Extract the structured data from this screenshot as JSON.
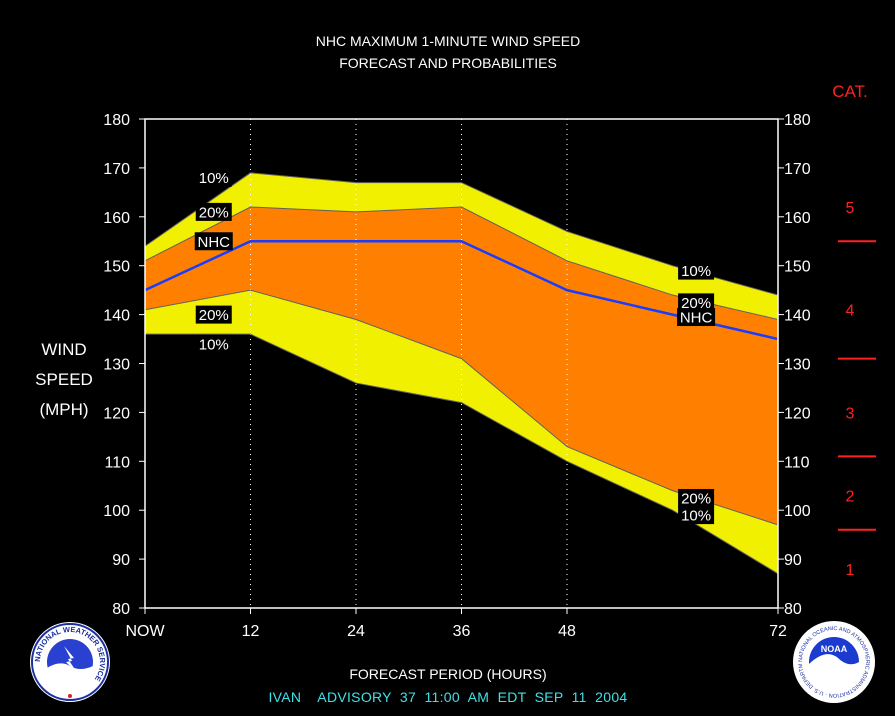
{
  "chart_data": {
    "type": "area",
    "title": "NHC MAXIMUM 1-MINUTE WIND SPEED",
    "subtitle": "FORECAST AND PROBABILITIES",
    "xlabel": "FORECAST PERIOD (HOURS)",
    "ylabel": [
      "WIND",
      "SPEED",
      "(MPH)"
    ],
    "xlim": [
      0,
      72
    ],
    "ylim": [
      80,
      180
    ],
    "x_ticks": [
      {
        "value": 0,
        "label": "NOW"
      },
      {
        "value": 12,
        "label": "12"
      },
      {
        "value": 24,
        "label": "24"
      },
      {
        "value": 36,
        "label": "36"
      },
      {
        "value": 48,
        "label": "48"
      },
      {
        "value": 72,
        "label": "72"
      }
    ],
    "y_ticks": [
      80,
      90,
      100,
      110,
      120,
      130,
      140,
      150,
      160,
      170,
      180
    ],
    "vertical_gridlines_at": [
      12,
      24,
      36,
      48
    ],
    "x": [
      0,
      12,
      24,
      36,
      48,
      60,
      72
    ],
    "series": [
      {
        "name": "10%",
        "values": [
          154,
          169,
          167,
          167,
          157,
          150,
          144
        ]
      },
      {
        "name": "20%",
        "values": [
          151,
          162,
          161,
          162,
          151,
          144,
          139
        ]
      },
      {
        "name": "NHC",
        "values": [
          145,
          155,
          155,
          155,
          145,
          140,
          135
        ]
      },
      {
        "name": "20%",
        "values": [
          141,
          145,
          139,
          131,
          113,
          104,
          97
        ]
      },
      {
        "name": "10%",
        "values": [
          136,
          136,
          126,
          122,
          110,
          100,
          87
        ]
      }
    ],
    "band_colors": {
      "outer": "#f0f000",
      "inner": "#ff8000",
      "nhc_line": "#1a3cff"
    },
    "category_scale": {
      "header": "CAT.",
      "labels": [
        "1",
        "2",
        "3",
        "4",
        "5"
      ],
      "boundaries": [
        96,
        111,
        131,
        155
      ],
      "label_positions": [
        88,
        103,
        120,
        141,
        162
      ],
      "color": "#ff2020"
    },
    "line_labels": [
      {
        "text": "10%",
        "x": 6,
        "y": 168
      },
      {
        "text": "20%",
        "x": 6,
        "y": 161
      },
      {
        "text": "NHC",
        "x": 6,
        "y": 155
      },
      {
        "text": "20%",
        "x": 6,
        "y": 140
      },
      {
        "text": "10%",
        "x": 6,
        "y": 134
      },
      {
        "text": "10%",
        "x": 62,
        "y": 149
      },
      {
        "text": "20%",
        "x": 62,
        "y": 142.5
      },
      {
        "text": "NHC",
        "x": 62,
        "y": 139.5
      },
      {
        "text": "20%",
        "x": 62,
        "y": 102.5
      },
      {
        "text": "10%",
        "x": 62,
        "y": 99
      }
    ]
  },
  "footer": {
    "advisory": "IVAN    ADVISORY  37  11:00  AM  EDT  SEP  11  2004"
  },
  "logos": {
    "left": "NATIONAL WEATHER SERVICE",
    "right": "NOAA",
    "right_ring": "NATIONAL OCEANIC AND ATMOSPHERIC ADMINISTRATION · U.S. DEPARTMENT OF COMMERCE"
  }
}
